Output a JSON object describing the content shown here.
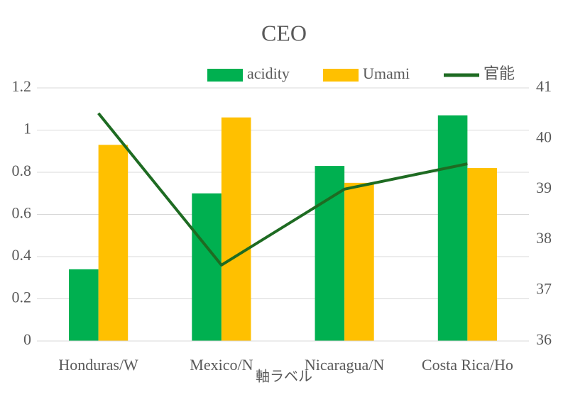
{
  "chart_data": {
    "type": "bar",
    "title": "CEO",
    "x_label": "軸ラベル",
    "categories": [
      "Honduras/W",
      "Mexico/N",
      "Nicaragua/N",
      "Costa Rica/Ho"
    ],
    "series": [
      {
        "name": "acidity",
        "color": "#00b050",
        "values": [
          0.34,
          0.7,
          0.83,
          1.07
        ]
      },
      {
        "name": "Umami",
        "color": "#ffc000",
        "values": [
          0.93,
          1.06,
          0.75,
          0.82
        ]
      },
      {
        "name": "官能",
        "color": "#1e6b22",
        "type": "line",
        "axis": "y2",
        "values": [
          40.5,
          37.5,
          39.0,
          39.5
        ]
      }
    ],
    "ylim": [
      0,
      1.2
    ],
    "yticks": [
      0,
      0.2,
      0.4,
      0.6,
      0.8,
      1,
      1.2
    ],
    "y2lim": [
      36,
      41
    ],
    "y2ticks": [
      36,
      37,
      38,
      39,
      40,
      41
    ],
    "grid": true,
    "legend": "top"
  }
}
